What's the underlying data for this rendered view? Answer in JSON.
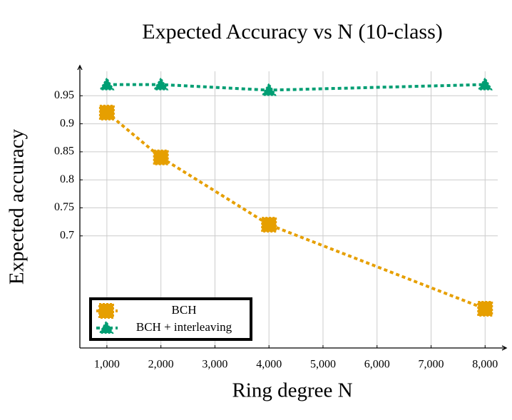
{
  "chart_data": {
    "type": "line",
    "title": "Expected Accuracy vs N (10-class)",
    "x_label": "Ring degree N",
    "y_label": "Expected accuracy",
    "x": [
      1000,
      2000,
      4000,
      8000
    ],
    "series": [
      {
        "name": "BCH",
        "color": "#e69f00",
        "marker": "square",
        "values": [
          0.92,
          0.84,
          0.72,
          0.57
        ]
      },
      {
        "name": "BCH + interleaving",
        "color": "#009e73",
        "marker": "triangle",
        "values": [
          0.97,
          0.97,
          0.96,
          0.97
        ]
      }
    ],
    "xlim": [
      500,
      8300
    ],
    "ylim": [
      0.5,
      1.0
    ],
    "xticks": [
      {
        "value": 1000,
        "label": "1,000"
      },
      {
        "value": 2000,
        "label": "2,000"
      },
      {
        "value": 3000,
        "label": "3,000"
      },
      {
        "value": 4000,
        "label": "4,000"
      },
      {
        "value": 5000,
        "label": "5,000"
      },
      {
        "value": 6000,
        "label": "6,000"
      },
      {
        "value": 7000,
        "label": "7,000"
      },
      {
        "value": 8000,
        "label": "8,000"
      }
    ],
    "yticks": [
      0.7,
      0.75,
      0.8,
      0.85,
      0.9,
      0.95
    ],
    "grid": true,
    "legend": "lower left"
  }
}
